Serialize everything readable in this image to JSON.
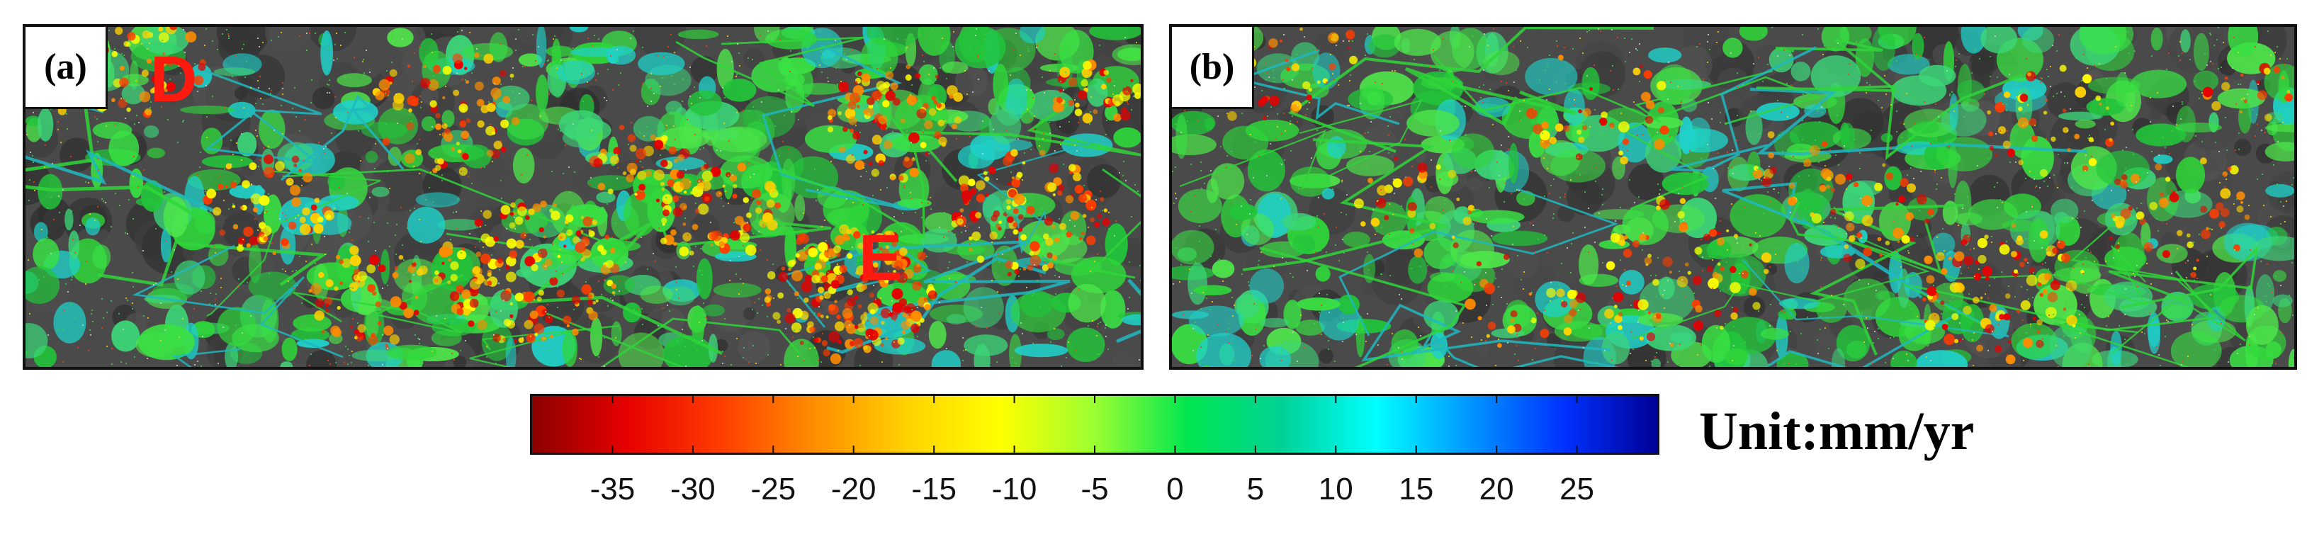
{
  "panels": [
    {
      "label": "(a)",
      "markers": [
        "D",
        "E"
      ]
    },
    {
      "label": "(b)",
      "markers": []
    }
  ],
  "colorbar": {
    "ticks": [
      "-35",
      "-30",
      "-25",
      "-20",
      "-15",
      "-10",
      "-5",
      "0",
      "5",
      "10",
      "15",
      "20",
      "25"
    ],
    "tick_values": [
      -35,
      -30,
      -25,
      -20,
      -15,
      -10,
      -5,
      0,
      5,
      10,
      15,
      20,
      25
    ],
    "range": [
      -40,
      30
    ],
    "unit_label": "Unit:mm/yr",
    "colormap": [
      "#8b0000",
      "#e60000",
      "#ff3c00",
      "#ff8c00",
      "#ffd200",
      "#ffff00",
      "#9aff32",
      "#00e650",
      "#00d296",
      "#00ffff",
      "#0096ff",
      "#0032ff",
      "#000096"
    ]
  },
  "colors": {
    "background": "#4a4a4a",
    "stable": "#2fd63a",
    "subsidence": "#ff1a10",
    "uplift": "#1fd1c9"
  }
}
